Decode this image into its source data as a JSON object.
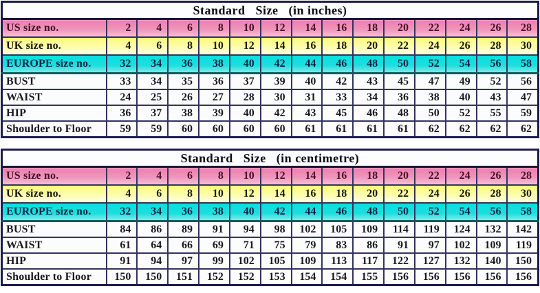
{
  "page": {
    "background": "#ffffff"
  },
  "colors": {
    "outer_border": "#1c1c4e",
    "grid_border": "#33335c",
    "us_row_pink": "#ec7fae",
    "uk_row_yellow": "#fbfb7a",
    "europe_row_cyan": "#08dfe0",
    "teal_divider": "#0b5c5a",
    "plain_row": "#fcfcfc"
  },
  "row_styles": [
    "us",
    "uk",
    "europe",
    "plain",
    "plain",
    "plain",
    "plain"
  ],
  "chart_data": [
    {
      "type": "table",
      "title": "Standard   Size   (in inches)",
      "unit": "inches",
      "row_labels": [
        "US size no.",
        "UK size no.",
        "EUROPE size no.",
        "BUST",
        "WAIST",
        "HIP",
        "Shoulder to Floor"
      ],
      "rows": [
        [
          2,
          4,
          6,
          8,
          10,
          12,
          14,
          16,
          18,
          20,
          22,
          24,
          26,
          28
        ],
        [
          4,
          6,
          8,
          10,
          12,
          14,
          16,
          18,
          20,
          22,
          24,
          26,
          28,
          30
        ],
        [
          32,
          34,
          36,
          38,
          40,
          42,
          44,
          46,
          48,
          50,
          52,
          54,
          56,
          58
        ],
        [
          33,
          34,
          35,
          36,
          37,
          39,
          40,
          42,
          43,
          45,
          47,
          49,
          52,
          56
        ],
        [
          24,
          25,
          26,
          27,
          28,
          30,
          31,
          33,
          34,
          36,
          38,
          40,
          43,
          47
        ],
        [
          36,
          37,
          38,
          39,
          40,
          42,
          43,
          45,
          46,
          48,
          50,
          52,
          55,
          59
        ],
        [
          59,
          59,
          60,
          60,
          60,
          60,
          61,
          61,
          61,
          61,
          62,
          62,
          62,
          62
        ]
      ]
    },
    {
      "type": "table",
      "title": "Standard   Size   (in centimetre)",
      "unit": "centimetre",
      "row_labels": [
        "US size no.",
        "UK size no.",
        "EUROPE size no.",
        "BUST",
        "WAIST",
        "HIP",
        "Shoulder to Floor"
      ],
      "rows": [
        [
          2,
          4,
          6,
          8,
          10,
          12,
          14,
          16,
          18,
          20,
          22,
          24,
          26,
          28
        ],
        [
          4,
          6,
          8,
          10,
          12,
          14,
          16,
          18,
          20,
          22,
          24,
          26,
          28,
          30
        ],
        [
          32,
          34,
          36,
          38,
          40,
          42,
          44,
          46,
          48,
          50,
          52,
          54,
          56,
          58
        ],
        [
          84,
          86,
          89,
          91,
          94,
          98,
          102,
          105,
          109,
          114,
          119,
          124,
          132,
          142
        ],
        [
          61,
          64,
          66,
          69,
          71,
          75,
          79,
          83,
          86,
          91,
          97,
          102,
          109,
          119
        ],
        [
          91,
          94,
          97,
          99,
          102,
          105,
          109,
          113,
          117,
          122,
          127,
          132,
          140,
          150
        ],
        [
          150,
          150,
          151,
          152,
          152,
          153,
          154,
          154,
          155,
          156,
          156,
          156,
          156,
          156
        ]
      ]
    }
  ]
}
